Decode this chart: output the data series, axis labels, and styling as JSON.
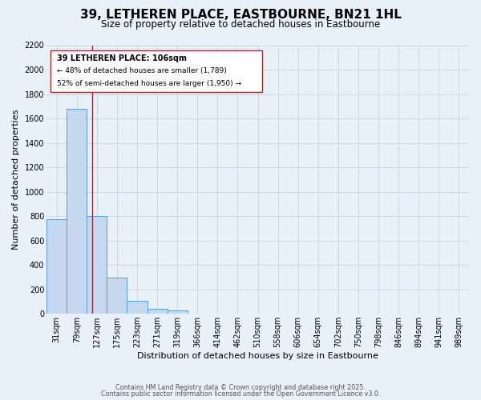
{
  "title": "39, LETHEREN PLACE, EASTBOURNE, BN21 1HL",
  "subtitle": "Size of property relative to detached houses in Eastbourne",
  "xlabel": "Distribution of detached houses by size in Eastbourne",
  "ylabel": "Number of detached properties",
  "categories": [
    "31sqm",
    "79sqm",
    "127sqm",
    "175sqm",
    "223sqm",
    "271sqm",
    "319sqm",
    "366sqm",
    "414sqm",
    "462sqm",
    "510sqm",
    "558sqm",
    "606sqm",
    "654sqm",
    "702sqm",
    "750sqm",
    "798sqm",
    "846sqm",
    "894sqm",
    "941sqm",
    "989sqm"
  ],
  "values": [
    775,
    1680,
    800,
    300,
    110,
    40,
    25,
    5,
    0,
    0,
    0,
    0,
    0,
    0,
    0,
    0,
    0,
    0,
    0,
    0,
    0
  ],
  "bar_color": "#c5d8f0",
  "bar_edge_color": "#5b9bd5",
  "grid_color": "#c8d8e8",
  "background_color": "#e8f0f8",
  "red_line_x": 1.75,
  "annotation_text_line1": "39 LETHEREN PLACE: 106sqm",
  "annotation_text_line2": "← 48% of detached houses are smaller (1,789)",
  "annotation_text_line3": "52% of semi-detached houses are larger (1,950) →",
  "ylim": [
    0,
    2200
  ],
  "yticks": [
    0,
    200,
    400,
    600,
    800,
    1000,
    1200,
    1400,
    1600,
    1800,
    2000,
    2200
  ],
  "footer_line1": "Contains HM Land Registry data © Crown copyright and database right 2025.",
  "footer_line2": "Contains public sector information licensed under the Open Government Licence v3.0.",
  "title_fontsize": 11,
  "subtitle_fontsize": 8.5,
  "axis_label_fontsize": 8,
  "tick_fontsize": 7,
  "ann_fontsize_bold": 7,
  "ann_fontsize": 6.5
}
